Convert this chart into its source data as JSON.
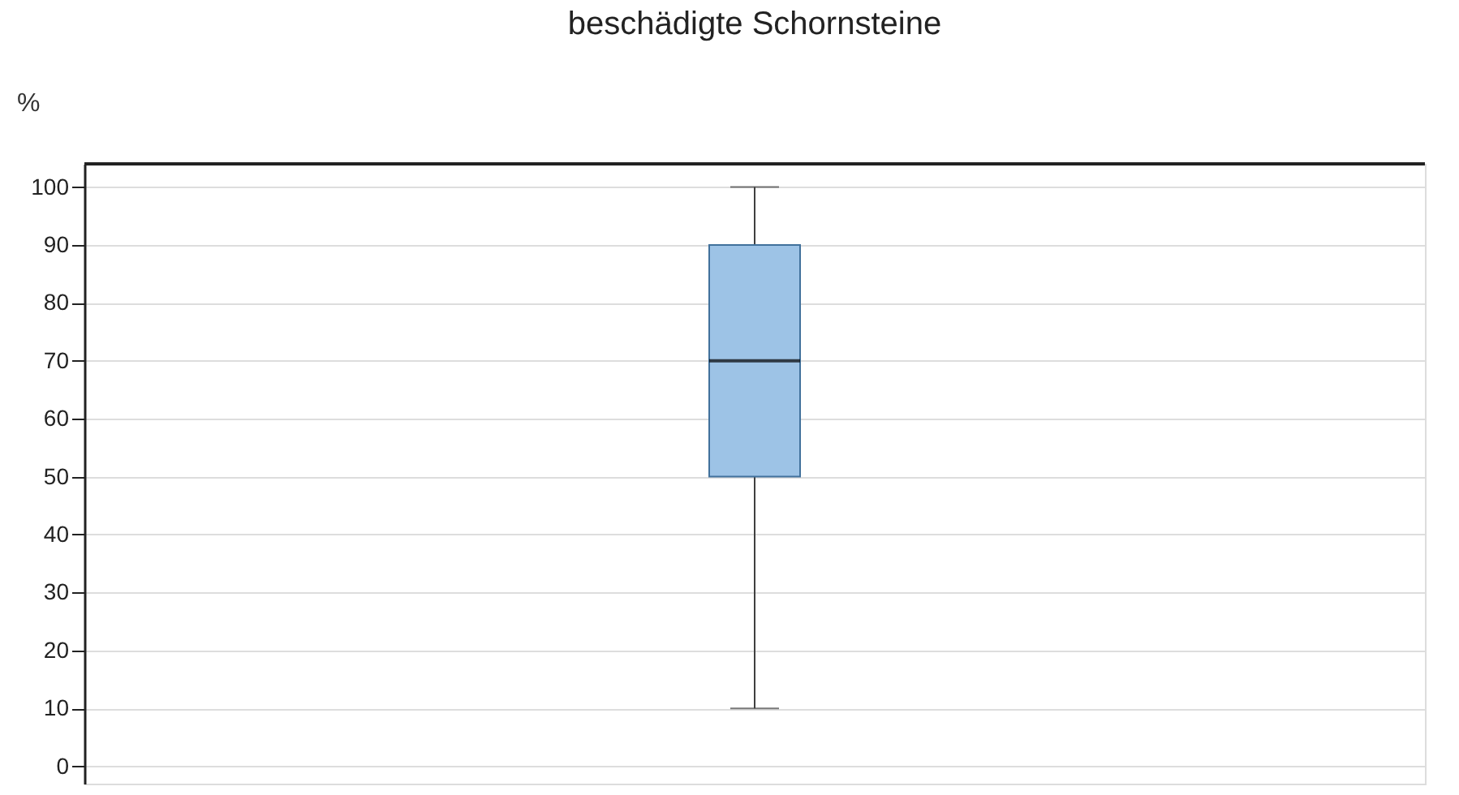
{
  "chart_data": {
    "type": "box",
    "title": "beschädigte Schornsteine",
    "ylabel": "%",
    "categories": [
      null
    ],
    "boxes": [
      {
        "low": 10,
        "q1": 50,
        "median": 70,
        "q3": 90,
        "high": 100
      }
    ],
    "color": "#9dc3e6",
    "ylim": [
      -3,
      104
    ],
    "yticks": [
      0,
      10,
      20,
      30,
      40,
      50,
      60,
      70,
      80,
      90,
      100
    ],
    "grid": "y",
    "tick_labels": "y"
  }
}
